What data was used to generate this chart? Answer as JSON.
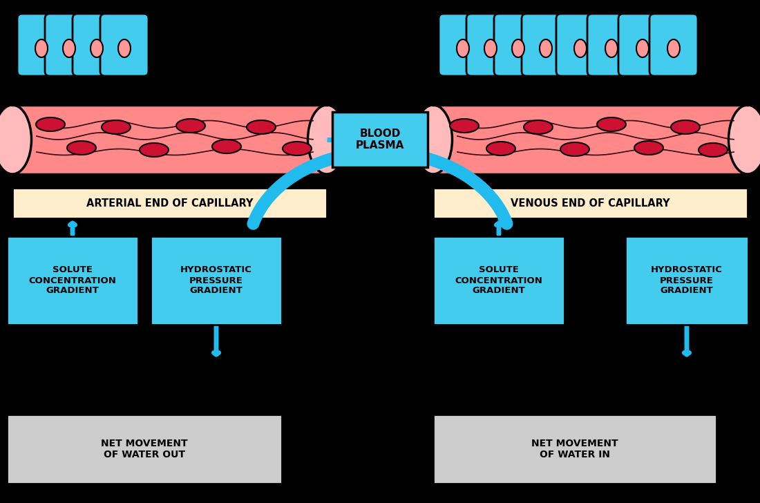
{
  "bg_color": "#000000",
  "capillary_fill": "#ff8888",
  "capillary_stroke": "#000000",
  "rbc_fill": "#cc1133",
  "rbc_stroke": "#000000",
  "cell_fill": "#44ccee",
  "cell_stroke": "#000000",
  "cell_nucleus_fill": "#ff9999",
  "arrow_color": "#22bbee",
  "label_box_arterial": "#ffeecc",
  "label_box_venous": "#ffeecc",
  "label_box_cyan": "#44ccee",
  "label_box_gray": "#cccccc",
  "blood_plasma_box": "#44ccee",
  "text_color": "#000000",
  "arterial_label": "ARTERIAL END OF CAPILLARY",
  "venous_label": "VENOUS END OF CAPILLARY",
  "blood_plasma_label": "BLOOD\nPLASMA",
  "solute_left_label": "SOLUTE\nCONCENTRATION\nGRADIENT",
  "hydrostatic_left_label": "HYDROSTATIC\nPRESSURE\nGRADIENT",
  "solute_right_label": "SOLUTE\nCONCENTRATION\nGRADIENT",
  "hydrostatic_right_label": "HYDROSTATIC\nPRESSURE\nGRADIENT",
  "net_left_label": "NET MOVEMENT\nOF WATER OUT",
  "net_right_label": "NET MOVEMENT\nOF WATER IN"
}
